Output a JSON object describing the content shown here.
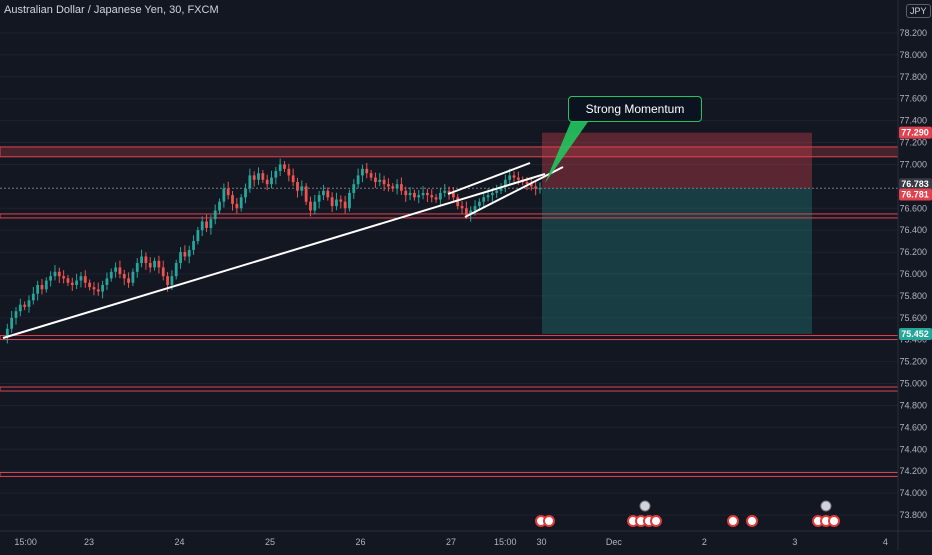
{
  "symbol": {
    "title": "Australian Dollar / Japanese Yen, 30, FXCM",
    "currency": "JPY"
  },
  "price_axis": [
    {
      "label": "78.200",
      "value": 78.2
    },
    {
      "label": "78.000",
      "value": 78.0
    },
    {
      "label": "77.800",
      "value": 77.8
    },
    {
      "label": "77.600",
      "value": 77.6
    },
    {
      "label": "77.400",
      "value": 77.4
    },
    {
      "label": "77.200",
      "value": 77.2
    },
    {
      "label": "77.000",
      "value": 77.0
    },
    {
      "label": "76.600",
      "value": 76.6
    },
    {
      "label": "76.400",
      "value": 76.4
    },
    {
      "label": "76.200",
      "value": 76.2
    },
    {
      "label": "76.000",
      "value": 76.0
    },
    {
      "label": "75.800",
      "value": 75.8
    },
    {
      "label": "75.600",
      "value": 75.6
    },
    {
      "label": "75.400",
      "value": 75.4
    },
    {
      "label": "75.200",
      "value": 75.2
    },
    {
      "label": "75.000",
      "value": 75.0
    },
    {
      "label": "74.800",
      "value": 74.8
    },
    {
      "label": "74.600",
      "value": 74.6
    },
    {
      "label": "74.400",
      "value": 74.4
    },
    {
      "label": "74.200",
      "value": 74.2
    },
    {
      "label": "74.000",
      "value": 74.0
    },
    {
      "label": "73.800",
      "value": 73.8
    }
  ],
  "time_axis": [
    {
      "label": "15:00",
      "value": 0.3
    },
    {
      "label": "23",
      "value": 1.0
    },
    {
      "label": "24",
      "value": 2.0
    },
    {
      "label": "25",
      "value": 3.0
    },
    {
      "label": "26",
      "value": 4.0
    },
    {
      "label": "27",
      "value": 5.0
    },
    {
      "label": "15:00",
      "value": 5.6
    },
    {
      "label": "30",
      "value": 6.0
    },
    {
      "label": "Dec",
      "value": 6.8
    },
    {
      "label": "2",
      "value": 7.8
    },
    {
      "label": "3",
      "value": 8.8
    },
    {
      "label": "4",
      "value": 9.8
    }
  ],
  "price_tags": [
    {
      "label": "77.290",
      "value": 77.29,
      "color": "#e0434f"
    },
    {
      "label": "76.783",
      "value": 76.783,
      "color": "#363a45"
    },
    {
      "label": "76.781",
      "value": 76.781,
      "color": "#e0434f"
    },
    {
      "label": "75.452",
      "value": 75.452,
      "color": "#26a69a"
    }
  ],
  "annotation": {
    "text": "Strong Momentum"
  },
  "chart_data": {
    "type": "candlestick",
    "series": [
      {
        "name": "price",
        "values": [
          75.42,
          75.5,
          75.6,
          75.66,
          75.72,
          75.7,
          75.76,
          75.82,
          75.9,
          75.86,
          75.94,
          75.98,
          76.02,
          75.98,
          75.96,
          75.92,
          75.9,
          75.94,
          75.98,
          75.92,
          75.88,
          75.86,
          75.84,
          75.9,
          75.96,
          76.02,
          76.06,
          76.0,
          75.96,
          75.92,
          76.02,
          76.1,
          76.16,
          76.1,
          76.06,
          76.12,
          76.06,
          75.98,
          75.9,
          75.98,
          76.1,
          76.2,
          76.16,
          76.22,
          76.3,
          76.4,
          76.48,
          76.42,
          76.5,
          76.58,
          76.66,
          76.78,
          76.72,
          76.64,
          76.6,
          76.7,
          76.78,
          76.9,
          76.86,
          76.92,
          76.86,
          76.82,
          76.88,
          76.94,
          77.0,
          76.96,
          76.9,
          76.84,
          76.76,
          76.8,
          76.66,
          76.58,
          76.66,
          76.72,
          76.76,
          76.7,
          76.62,
          76.68,
          76.66,
          76.6,
          76.74,
          76.82,
          76.9,
          76.96,
          76.92,
          76.88,
          76.84,
          76.86,
          76.82,
          76.8,
          76.78,
          76.82,
          76.76,
          76.72,
          76.74,
          76.7,
          76.72,
          76.74,
          76.72,
          76.7,
          76.68,
          76.74,
          76.76,
          76.74,
          76.7,
          76.62,
          76.6,
          76.54,
          76.58,
          76.62,
          76.66,
          76.7,
          76.72,
          76.74,
          76.76,
          76.8,
          76.86,
          76.9,
          76.88,
          76.86,
          76.84,
          76.82,
          76.8,
          76.78,
          76.782
        ]
      }
    ],
    "levels": [
      77.15,
      77.08,
      76.52,
      75.42,
      74.95,
      74.17
    ],
    "risk_zone": {
      "top": 77.29,
      "bottom": 76.783
    },
    "reward_zone": {
      "top": 76.783,
      "bottom": 75.452
    }
  }
}
